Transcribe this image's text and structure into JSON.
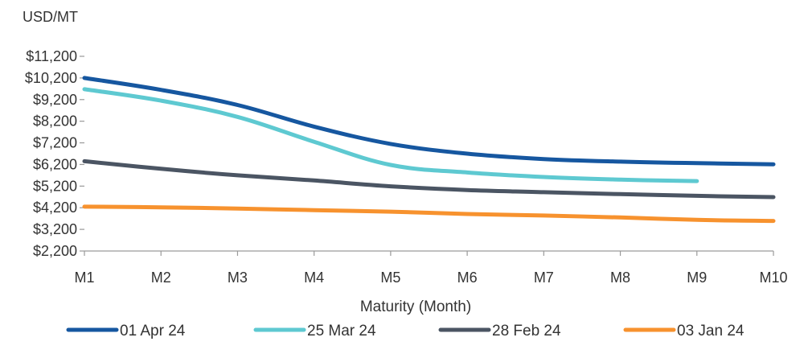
{
  "chart_data": {
    "type": "line",
    "title": "",
    "ylabel": "USD/MT",
    "xlabel": "Maturity (Month)",
    "categories": [
      "M1",
      "M2",
      "M3",
      "M4",
      "M5",
      "M6",
      "M7",
      "M8",
      "M9",
      "M10"
    ],
    "yticks": [
      2200,
      3200,
      4200,
      5200,
      6200,
      7200,
      8200,
      9200,
      10200,
      11200
    ],
    "ytick_labels": [
      "$2,200",
      "$3,200",
      "$4,200",
      "$5,200",
      "$6,200",
      "$7,200",
      "$8,200",
      "$9,200",
      "$10,200",
      "$11,200"
    ],
    "ylim": [
      2200,
      11200
    ],
    "grid": false,
    "legend_position": "bottom",
    "series": [
      {
        "name": "01 Apr 24",
        "color": "#1657a0",
        "values": [
          10200,
          9650,
          8950,
          7950,
          7150,
          6700,
          6450,
          6330,
          6260,
          6210
        ]
      },
      {
        "name": "25 Mar 24",
        "color": "#5ec9d1",
        "values": [
          9680,
          9150,
          8400,
          7250,
          6180,
          5830,
          5620,
          5500,
          5430,
          null
        ]
      },
      {
        "name": "28 Feb 24",
        "color": "#4b5563",
        "values": [
          6350,
          6000,
          5700,
          5460,
          5190,
          5020,
          4920,
          4830,
          4750,
          4690
        ]
      },
      {
        "name": "03 Jan 24",
        "color": "#f7922e",
        "values": [
          4250,
          4220,
          4160,
          4090,
          4020,
          3910,
          3840,
          3750,
          3640,
          3590
        ]
      }
    ]
  }
}
